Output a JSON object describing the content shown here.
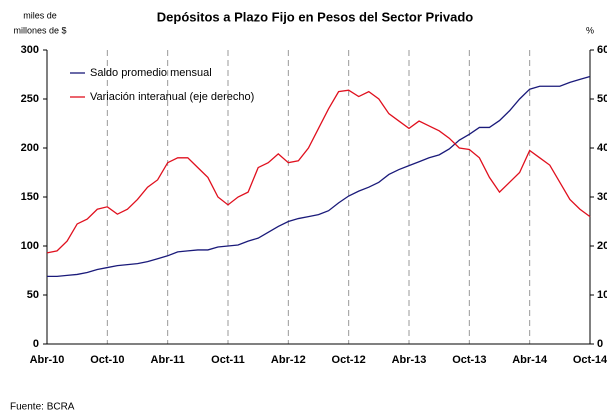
{
  "chart_data": {
    "type": "line",
    "title": "Depósitos a Plazo Fijo en Pesos del Sector Privado",
    "y_label": [
      "miles de",
      "millones de $"
    ],
    "y2_label": "%",
    "source": "Fuente: BCRA",
    "categories": [
      "Abr-10",
      null,
      null,
      null,
      null,
      null,
      "Oct-10",
      null,
      null,
      null,
      null,
      null,
      "Abr-11",
      null,
      null,
      null,
      null,
      null,
      "Oct-11",
      null,
      null,
      null,
      null,
      null,
      "Abr-12",
      null,
      null,
      null,
      null,
      null,
      "Oct-12",
      null,
      null,
      null,
      null,
      null,
      "Abr-13",
      null,
      null,
      null,
      null,
      null,
      "Oct-13",
      null,
      null,
      null,
      null,
      null,
      "Abr-14",
      null,
      null,
      null,
      null,
      null,
      "Oct-14"
    ],
    "series": [
      {
        "name": "Saldo promedio mensual",
        "color": "#1a1a7a",
        "axis": "y",
        "values": [
          69,
          69,
          70,
          71,
          73,
          76,
          78,
          80,
          81,
          82,
          84,
          87,
          90,
          94,
          95,
          96,
          96,
          99,
          100,
          101,
          105,
          108,
          114,
          120,
          125,
          128,
          130,
          132,
          136,
          144,
          151,
          156,
          160,
          165,
          173,
          178,
          182,
          186,
          190,
          193,
          199,
          208,
          214,
          221,
          221,
          228,
          238,
          250,
          260,
          263,
          263,
          263,
          267,
          270,
          273
        ]
      },
      {
        "name": "Variación interanual (eje derecho)",
        "color": "#e0101e",
        "axis": "y2",
        "values": [
          18.6,
          19,
          21,
          24.5,
          25.5,
          27.5,
          28,
          26.5,
          27.5,
          29.5,
          32,
          33.5,
          37,
          38,
          38,
          36,
          34,
          30,
          28.4,
          30,
          31,
          36,
          37,
          38.8,
          37,
          37.4,
          40,
          44,
          48,
          51.5,
          51.8,
          50.5,
          51.5,
          50,
          47,
          45.5,
          44,
          45.5,
          44.5,
          43.5,
          42,
          40,
          39.7,
          38,
          34,
          31,
          33,
          35,
          39.5,
          38,
          36.5,
          33,
          29.5,
          27.5,
          26
        ]
      }
    ],
    "ylim": [
      0,
      300
    ],
    "yticks": [
      0,
      50,
      100,
      150,
      200,
      250,
      300
    ],
    "y2lim": [
      0,
      60
    ],
    "y2ticks": [
      0,
      10,
      20,
      30,
      40,
      50,
      60
    ],
    "grid": true
  }
}
